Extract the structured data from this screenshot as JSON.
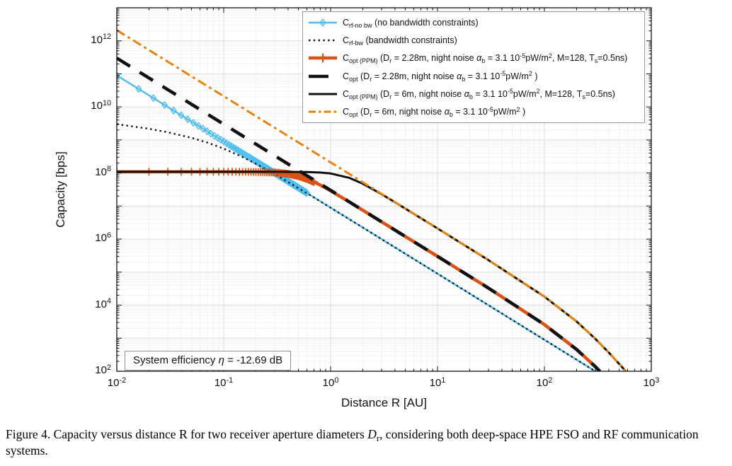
{
  "figure": {
    "caption": "Figure 4. Capacity versus distance R for two receiver aperture diameters *D*_{r}, considering both deep-space HPE FSO and RF communication systems."
  },
  "chart_data": {
    "type": "line",
    "title": "",
    "xlabel": "Distance R [AU]",
    "ylabel": "Capacity [bps]",
    "xscale": "log",
    "yscale": "log",
    "xlim": [
      0.01,
      1000
    ],
    "ylim": [
      100,
      10000000000000.0
    ],
    "x_tick_exponents": [
      -2,
      -1,
      0,
      1,
      2,
      3
    ],
    "y_tick_exponents": [
      2,
      4,
      6,
      8,
      10,
      12
    ],
    "grid": {
      "major": true,
      "minor": true
    },
    "legend_position": "top-right",
    "annotation": "System efficiency *η* = -12.69 dB",
    "colors": {
      "cyan": "#4DBEEE",
      "vermillion": "#D95319",
      "orange": "#E6830F",
      "black": "#111111",
      "grid_major": "#dcdcdc",
      "grid_minor": "#f2f2f2"
    },
    "series": [
      {
        "name": "rf-no-bw",
        "label": "C_{rf-no bw} (no bandwidth constraints)",
        "color": "#4DBEEE",
        "style": "solid",
        "width": 2.4,
        "marker": {
          "shape": "diamond",
          "size": 4.6,
          "R_from": 0.01,
          "R_to": 0.6,
          "R_step": 0.006
        },
        "points": [
          [
            0.01,
            89600000000.0
          ],
          [
            0.03,
            9960000000.0
          ],
          [
            0.1,
            896000000.0
          ],
          [
            0.3,
            99600000.0
          ],
          [
            1,
            8960000.0
          ],
          [
            3,
            996000.0
          ],
          [
            10,
            89600.0
          ],
          [
            30,
            9960
          ],
          [
            100,
            896
          ],
          [
            300,
            99.6
          ]
        ]
      },
      {
        "name": "rf-bw",
        "label": "C_{rf-bw} (bandwidth constraints)",
        "color": "#111111",
        "style": "dotted",
        "width": 2.4,
        "points": [
          [
            0.01,
            3000000000.0
          ],
          [
            0.02,
            2180000000.0
          ],
          [
            0.03,
            1710000000.0
          ],
          [
            0.05,
            1160000000.0
          ],
          [
            0.07,
            837000000.0
          ],
          [
            0.1,
            547000000.0
          ],
          [
            0.15,
            305000000.0
          ],
          [
            0.2,
            190000000.0
          ],
          [
            0.3,
            92000000.0
          ],
          [
            0.5,
            34800000.0
          ],
          [
            0.7,
            18000000.0
          ],
          [
            1,
            8890000.0
          ],
          [
            2,
            2240000.0
          ],
          [
            5,
            358000.0
          ],
          [
            10,
            89600.0
          ],
          [
            30,
            9950
          ],
          [
            100,
            896
          ],
          [
            300,
            99.6
          ]
        ]
      },
      {
        "name": "opt-ppm-2.28m",
        "label": "C_{opt (PPM)} (D_{r} = 2.28m, night noise *α*_{b} = 3.1 10^{-5}pW/m^{2}, M=128, T_{s}=0.5ns)",
        "color": "#D95319",
        "style": "solid",
        "width": 4.6,
        "marker": {
          "shape": "plus",
          "size": 5.5,
          "R_from": 0.01,
          "R_to": 0.7,
          "R_step": 0.01
        },
        "points": [
          [
            0.01,
            109000000.0
          ],
          [
            0.05,
            108960000.0
          ],
          [
            0.1,
            108900000.0
          ],
          [
            0.15,
            108640000.0
          ],
          [
            0.2,
            107900000.0
          ],
          [
            0.3,
            103600000.0
          ],
          [
            0.4,
            94200000.0
          ],
          [
            0.5,
            80700000.0
          ],
          [
            0.6,
            66200000.0
          ],
          [
            0.7,
            53400000.0
          ],
          [
            0.8,
            43100000.0
          ],
          [
            1,
            28900000.0
          ],
          [
            1.5,
            13200000.0
          ],
          [
            2,
            7480000.0
          ],
          [
            3,
            3330000.0
          ],
          [
            5,
            1200000.0
          ],
          [
            10,
            300000.0
          ],
          [
            30,
            32900.0
          ],
          [
            100,
            2586
          ],
          [
            200,
            457
          ],
          [
            300,
            137
          ],
          [
            330,
            100
          ]
        ]
      },
      {
        "name": "opt-2.28m",
        "label": "C_{opt} (D_{r} = 2.28m, night noise *α*_{b} = 3.1 10^{-5}pW/m^{2} )",
        "color": "#111111",
        "style": "dashed",
        "width": 4.6,
        "points": [
          [
            0.01,
            300000000000.0
          ],
          [
            0.1,
            3000000000.0
          ],
          [
            1,
            30000000.0
          ],
          [
            3,
            3330000.0
          ],
          [
            10,
            300000.0
          ],
          [
            30,
            32900.0
          ],
          [
            100,
            2586
          ],
          [
            200,
            457
          ],
          [
            300,
            137
          ],
          [
            330,
            100
          ]
        ]
      },
      {
        "name": "opt-ppm-6m",
        "label": "C_{opt (PPM)} (D_{r} = 6m, night noise *α*_{b} = 3.1 10^{-5}pW/m^{2}, M=128, T_{s}=0.5ns)",
        "color": "#111111",
        "style": "solid",
        "width": 3,
        "points": [
          [
            0.01,
            109000000.0
          ],
          [
            0.3,
            108880000.0
          ],
          [
            0.5,
            108100000.0
          ],
          [
            0.6,
            107150000.0
          ],
          [
            0.8,
            103400000.0
          ],
          [
            1,
            96700000.0
          ],
          [
            1.5,
            70900000.0
          ],
          [
            2,
            47300000.0
          ],
          [
            3,
            22800000.0
          ],
          [
            4,
            13000000.0
          ],
          [
            5,
            8380000.0
          ],
          [
            10,
            2100000.0
          ],
          [
            30,
            230000.0
          ],
          [
            100,
            18100.0
          ],
          [
            200,
            3201
          ],
          [
            300,
            956
          ],
          [
            400,
            369
          ],
          [
            500,
            168
          ],
          [
            580,
            98
          ]
        ]
      },
      {
        "name": "opt-6m",
        "label": "C_{opt} (D_{r} = 6m, night noise *α*_{b} = 3.1 10^{-5}pW/m^{2} )",
        "color": "#E6830F",
        "style": "dashdot",
        "width": 3,
        "points": [
          [
            0.01,
            2100000000000.0
          ],
          [
            0.1,
            21000000000.0
          ],
          [
            1,
            210000000.0
          ],
          [
            3,
            23300000.0
          ],
          [
            10,
            2100000.0
          ],
          [
            30,
            230000.0
          ],
          [
            100,
            18100.0
          ],
          [
            200,
            3201
          ],
          [
            300,
            956
          ],
          [
            400,
            369
          ],
          [
            500,
            168
          ],
          [
            580,
            98
          ]
        ]
      }
    ]
  }
}
